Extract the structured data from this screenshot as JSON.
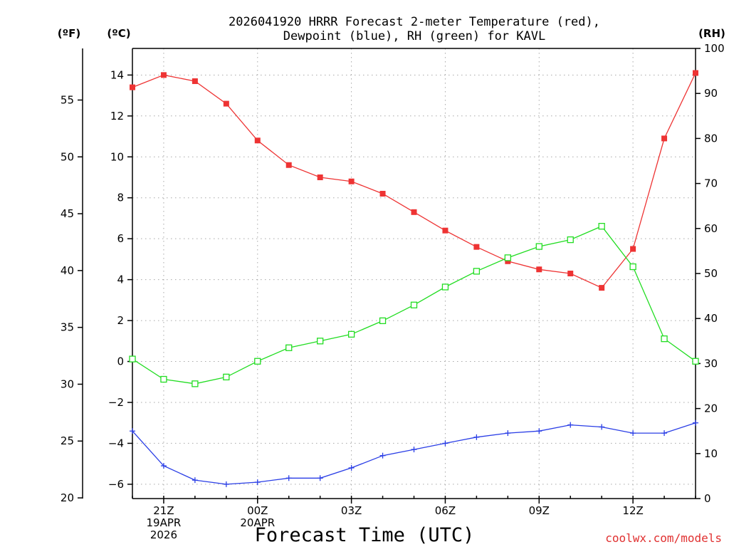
{
  "chart_data": {
    "type": "line",
    "title_line1": "2026041920 HRRR Forecast 2-meter Temperature (red),",
    "title_line2": "Dewpoint (blue), RH (green) for KAVL",
    "xlabel": "Forecast Time (UTC)",
    "credit": "coolwx.com/models",
    "unit_left_f": "(ºF)",
    "unit_left_c": "(ºC)",
    "unit_right": "(RH)",
    "x_hours": [
      20,
      21,
      22,
      23,
      24,
      25,
      26,
      27,
      28,
      29,
      30,
      31,
      32,
      33,
      34,
      35,
      36,
      37,
      38
    ],
    "x_ticks": [
      {
        "hour": 21,
        "lines": [
          "21Z",
          "19APR",
          "2026"
        ]
      },
      {
        "hour": 24,
        "lines": [
          "00Z",
          "20APR"
        ]
      },
      {
        "hour": 27,
        "lines": [
          "03Z"
        ]
      },
      {
        "hour": 30,
        "lines": [
          "06Z"
        ]
      },
      {
        "hour": 33,
        "lines": [
          "09Z"
        ]
      },
      {
        "hour": 36,
        "lines": [
          "12Z"
        ]
      }
    ],
    "celsius_axis": {
      "range": [
        -6.7,
        15.3
      ],
      "ticks": [
        -6,
        -4,
        -2,
        0,
        2,
        4,
        6,
        8,
        10,
        12,
        14
      ]
    },
    "fahrenheit_axis": {
      "ticks": [
        20,
        25,
        30,
        35,
        40,
        45,
        50,
        55
      ]
    },
    "rh_axis": {
      "range": [
        0,
        100
      ],
      "ticks": [
        0,
        10,
        20,
        30,
        40,
        50,
        60,
        70,
        80,
        90,
        100
      ]
    },
    "series": [
      {
        "name": "Temperature",
        "axis": "C",
        "color": "#ee3333",
        "marker": "filled-square",
        "values": [
          13.4,
          14.0,
          13.7,
          12.6,
          10.8,
          9.6,
          9.0,
          8.8,
          8.2,
          7.3,
          6.4,
          5.6,
          4.9,
          4.5,
          4.3,
          3.6,
          5.5,
          10.9,
          14.1
        ]
      },
      {
        "name": "Dewpoint",
        "axis": "C",
        "color": "#2a3ee6",
        "marker": "plus",
        "values": [
          -3.4,
          -5.1,
          -5.8,
          -6.0,
          -5.9,
          -5.7,
          -5.7,
          -5.2,
          -4.6,
          -4.3,
          -4.0,
          -3.7,
          -3.5,
          -3.4,
          -3.1,
          -3.2,
          -3.5,
          -3.5,
          -3.0
        ]
      },
      {
        "name": "Relative Humidity",
        "axis": "RH",
        "color": "#22dd22",
        "marker": "open-square",
        "values": [
          31,
          26.5,
          25.5,
          27,
          30.5,
          33.5,
          35,
          36.5,
          39.5,
          43,
          47,
          50.5,
          53.5,
          56,
          57.5,
          60.5,
          51.5,
          35.5,
          30.5
        ]
      }
    ]
  }
}
